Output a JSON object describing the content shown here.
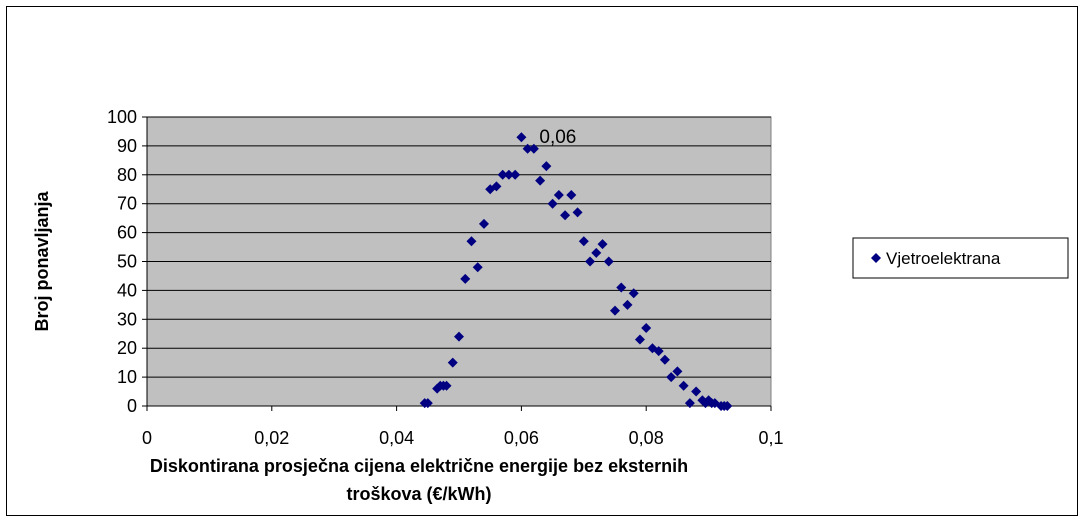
{
  "chart_data": {
    "type": "scatter",
    "title": "",
    "xlabel_lines": [
      "Diskontirana prosječna cijena električne energije bez eksternih",
      "troškova (€/kWh)"
    ],
    "ylabel": "Broj ponavljanja",
    "xlim": [
      0,
      0.1
    ],
    "ylim": [
      0,
      100
    ],
    "x_ticks": [
      0,
      0.02,
      0.04,
      0.06,
      0.08,
      0.1
    ],
    "x_tick_labels": [
      "0",
      "0,02",
      "0,04",
      "0,06",
      "0,08",
      "0,1"
    ],
    "y_ticks": [
      0,
      10,
      20,
      30,
      40,
      50,
      60,
      70,
      80,
      90,
      100
    ],
    "y_tick_labels": [
      "0",
      "10",
      "20",
      "30",
      "40",
      "50",
      "60",
      "70",
      "80",
      "90",
      "100"
    ],
    "grid": "horizontal",
    "plot_background": "#c0c0c0",
    "legend_position": "right",
    "annotation": {
      "text": "0,06",
      "x": 0.06,
      "y": 93
    },
    "series": [
      {
        "name": "Vjetroelektrana",
        "color": "#000080",
        "marker": "diamond",
        "points": [
          [
            0.0445,
            1
          ],
          [
            0.045,
            1
          ],
          [
            0.0465,
            6
          ],
          [
            0.047,
            7
          ],
          [
            0.0475,
            7
          ],
          [
            0.048,
            7
          ],
          [
            0.049,
            15
          ],
          [
            0.05,
            24
          ],
          [
            0.051,
            44
          ],
          [
            0.052,
            57
          ],
          [
            0.053,
            48
          ],
          [
            0.054,
            63
          ],
          [
            0.055,
            75
          ],
          [
            0.056,
            76
          ],
          [
            0.057,
            80
          ],
          [
            0.058,
            80
          ],
          [
            0.059,
            80
          ],
          [
            0.06,
            93
          ],
          [
            0.061,
            89
          ],
          [
            0.062,
            89
          ],
          [
            0.063,
            78
          ],
          [
            0.064,
            83
          ],
          [
            0.065,
            70
          ],
          [
            0.066,
            73
          ],
          [
            0.067,
            66
          ],
          [
            0.068,
            73
          ],
          [
            0.069,
            67
          ],
          [
            0.07,
            57
          ],
          [
            0.071,
            50
          ],
          [
            0.072,
            53
          ],
          [
            0.073,
            56
          ],
          [
            0.074,
            50
          ],
          [
            0.075,
            33
          ],
          [
            0.076,
            41
          ],
          [
            0.077,
            35
          ],
          [
            0.078,
            39
          ],
          [
            0.079,
            23
          ],
          [
            0.08,
            27
          ],
          [
            0.081,
            20
          ],
          [
            0.082,
            19
          ],
          [
            0.083,
            16
          ],
          [
            0.084,
            10
          ],
          [
            0.085,
            12
          ],
          [
            0.086,
            7
          ],
          [
            0.087,
            1
          ],
          [
            0.088,
            5
          ],
          [
            0.089,
            2
          ],
          [
            0.0895,
            1
          ],
          [
            0.09,
            2
          ],
          [
            0.0905,
            1
          ],
          [
            0.091,
            1
          ],
          [
            0.092,
            0
          ],
          [
            0.0925,
            0
          ],
          [
            0.093,
            0
          ]
        ]
      }
    ]
  }
}
